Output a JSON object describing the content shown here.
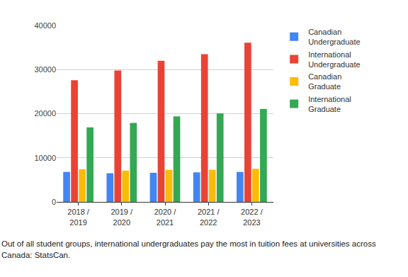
{
  "chart_data": {
    "type": "bar",
    "categories": [
      "2018 / 2019",
      "2019 / 2020",
      "2020 / 2021",
      "2021 / 2022",
      "2022 / 2023"
    ],
    "series": [
      {
        "name": "Canadian Undergraduate",
        "color": "#4285f4",
        "values": [
          6800,
          6500,
          6600,
          6700,
          6800
        ]
      },
      {
        "name": "International Undergraduate",
        "color": "#ea4335",
        "values": [
          27600,
          29800,
          32000,
          33500,
          36100
        ]
      },
      {
        "name": "Canadian Graduate",
        "color": "#fbbc04",
        "values": [
          7400,
          7100,
          7300,
          7300,
          7500
        ]
      },
      {
        "name": "International Graduate",
        "color": "#34a853",
        "values": [
          16900,
          17900,
          19400,
          20100,
          21100
        ]
      }
    ],
    "ylim": [
      0,
      40000
    ],
    "yticks": [
      0,
      10000,
      20000,
      30000,
      40000
    ],
    "grid": true,
    "legend": "right",
    "caption": "Out of all student groups, international undergraduates pay the most in tuition fees at universities across Canada: StatsCan."
  }
}
